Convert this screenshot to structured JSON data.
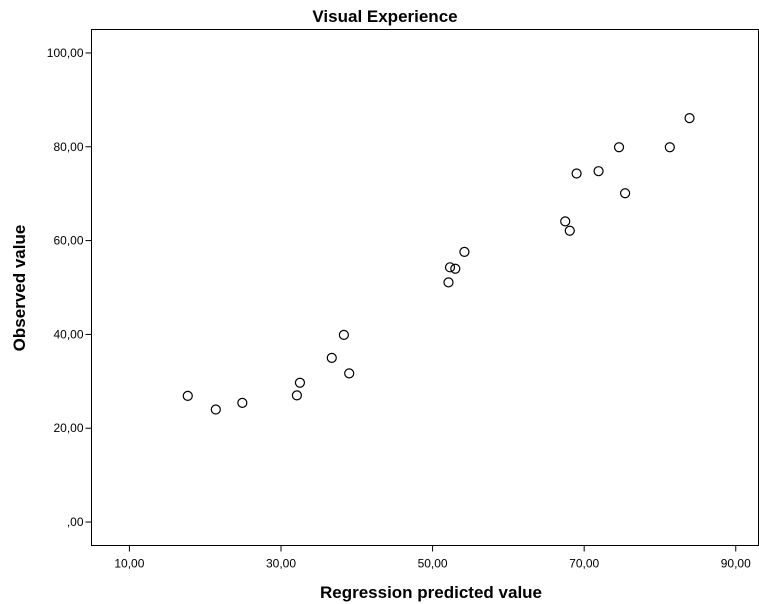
{
  "chart_data": {
    "type": "scatter",
    "title": "Visual Experience",
    "xlabel": "Regression predicted value",
    "ylabel": "Observed value",
    "xlim": [
      5,
      93
    ],
    "ylim": [
      -5,
      105
    ],
    "xticks": [
      10,
      30,
      50,
      70,
      90
    ],
    "xtick_labels": [
      "10,00",
      "30,00",
      "50,00",
      "70,00",
      "90,00"
    ],
    "yticks": [
      0,
      20,
      40,
      60,
      80,
      100
    ],
    "ytick_labels": [
      ",00",
      "20,00",
      "40,00",
      "60,00",
      "80,00",
      "100,00"
    ],
    "grid": false,
    "marker": "hollow-circle",
    "points": [
      {
        "x": 17.7,
        "y": 26.9
      },
      {
        "x": 21.4,
        "y": 24.0
      },
      {
        "x": 24.9,
        "y": 25.4
      },
      {
        "x": 32.1,
        "y": 27.0
      },
      {
        "x": 32.5,
        "y": 29.7
      },
      {
        "x": 36.7,
        "y": 35.0
      },
      {
        "x": 38.3,
        "y": 39.9
      },
      {
        "x": 39.0,
        "y": 31.7
      },
      {
        "x": 52.1,
        "y": 51.1
      },
      {
        "x": 52.3,
        "y": 54.3
      },
      {
        "x": 53.0,
        "y": 54.0
      },
      {
        "x": 54.2,
        "y": 57.6
      },
      {
        "x": 67.5,
        "y": 64.1
      },
      {
        "x": 68.1,
        "y": 62.1
      },
      {
        "x": 69.0,
        "y": 74.3
      },
      {
        "x": 71.9,
        "y": 74.8
      },
      {
        "x": 74.6,
        "y": 79.9
      },
      {
        "x": 75.4,
        "y": 70.1
      },
      {
        "x": 81.3,
        "y": 79.9
      },
      {
        "x": 83.9,
        "y": 86.1
      }
    ]
  }
}
